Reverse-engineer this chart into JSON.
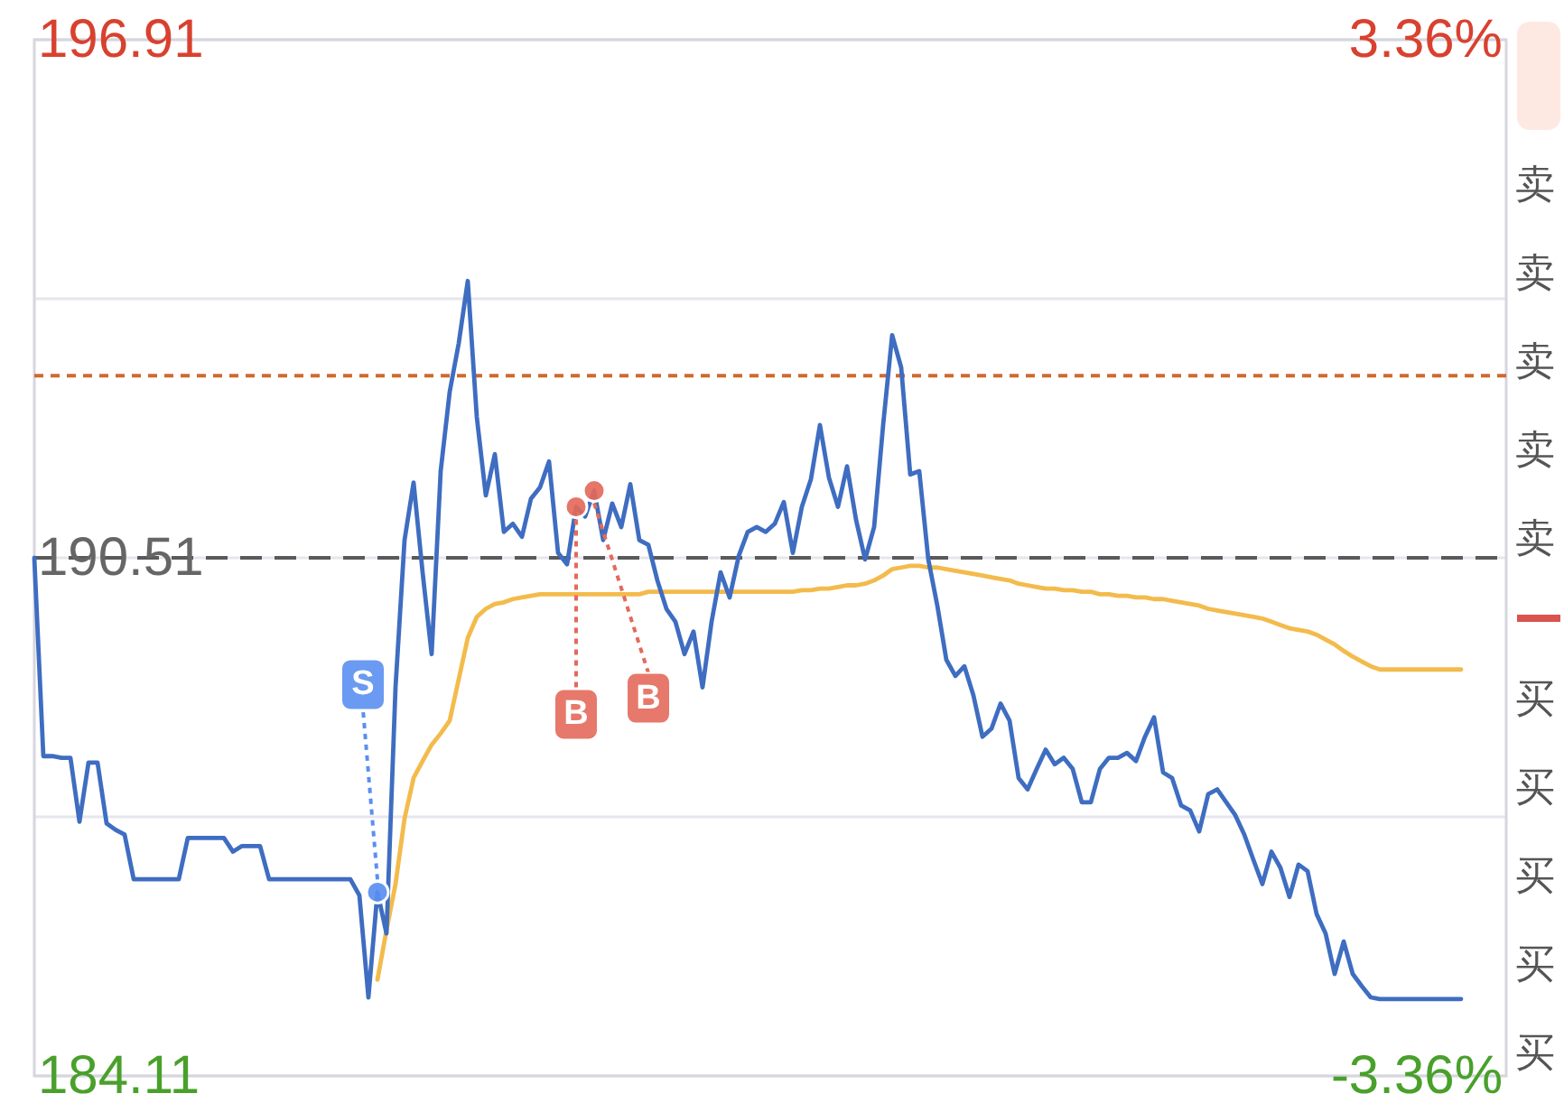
{
  "chart_data": {
    "type": "line",
    "categories": [
      null,
      null,
      null,
      null,
      null,
      null,
      null,
      null,
      null,
      null,
      null,
      null,
      null,
      null,
      null,
      null,
      null,
      null,
      null,
      null,
      null,
      null,
      null,
      null,
      null,
      null,
      null,
      null,
      null,
      null,
      null,
      null,
      null,
      null,
      null,
      null,
      null,
      null,
      null,
      null,
      null,
      null,
      null,
      null,
      null,
      null,
      null,
      null,
      null,
      null,
      null,
      null,
      null,
      null,
      null,
      null,
      null,
      null,
      null,
      null,
      null,
      null,
      null,
      null,
      null,
      null,
      null,
      null,
      null,
      null,
      null,
      null,
      null,
      null,
      null,
      null,
      null,
      null,
      null,
      null,
      null,
      null,
      null,
      null,
      null,
      null,
      null,
      null,
      null,
      null,
      null,
      null,
      null,
      null,
      null,
      null,
      null,
      null,
      null,
      null,
      null,
      null,
      null,
      null,
      null,
      null,
      null,
      null,
      null,
      null,
      null,
      null,
      null,
      null,
      null,
      null,
      null,
      null,
      null,
      null,
      null,
      null,
      null,
      null,
      null,
      null,
      null,
      null,
      null,
      null,
      null,
      null,
      null,
      null,
      null,
      null,
      null,
      null,
      null,
      null,
      null,
      null,
      null,
      null,
      null,
      null,
      null,
      null,
      null,
      null,
      null,
      null,
      null,
      null,
      null,
      null,
      null,
      null,
      null,
      null,
      null,
      null,
      null,
      null
    ],
    "series": [
      {
        "color": "#f3bb4c",
        "values": [
          null,
          null,
          null,
          null,
          null,
          null,
          null,
          null,
          null,
          null,
          null,
          null,
          null,
          null,
          null,
          null,
          null,
          null,
          null,
          null,
          null,
          null,
          null,
          null,
          null,
          null,
          null,
          null,
          null,
          null,
          null,
          null,
          null,
          null,
          null,
          null,
          null,
          null,
          185.3,
          185.91,
          186.48,
          187.29,
          187.79,
          188.0,
          188.2,
          188.34,
          188.5,
          189.01,
          189.52,
          189.78,
          189.88,
          189.94,
          189.96,
          190.0,
          190.02,
          190.04,
          190.06,
          190.06,
          190.06,
          190.06,
          190.06,
          190.06,
          190.06,
          190.06,
          190.06,
          190.06,
          190.06,
          190.06,
          190.09,
          190.09,
          190.09,
          190.09,
          190.09,
          190.09,
          190.09,
          190.09,
          190.09,
          190.09,
          190.09,
          190.09,
          190.09,
          190.09,
          190.09,
          190.09,
          190.09,
          190.11,
          190.11,
          190.13,
          190.13,
          190.15,
          190.17,
          190.17,
          190.19,
          190.23,
          190.29,
          190.37,
          190.39,
          190.41,
          190.41,
          190.39,
          190.39,
          190.37,
          190.35,
          190.33,
          190.31,
          190.29,
          190.27,
          190.25,
          190.23,
          190.19,
          190.17,
          190.15,
          190.13,
          190.13,
          190.11,
          190.11,
          190.09,
          190.09,
          190.06,
          190.06,
          190.04,
          190.04,
          190.02,
          190.02,
          190.0,
          190.0,
          189.98,
          189.96,
          189.94,
          189.92,
          189.88,
          189.86,
          189.84,
          189.82,
          189.8,
          189.78,
          189.76,
          189.72,
          189.68,
          189.64,
          189.62,
          189.6,
          189.56,
          189.5,
          189.44,
          189.36,
          189.29,
          189.23,
          189.17,
          189.13,
          189.13,
          189.13,
          189.13,
          189.13,
          189.13,
          189.13,
          189.13,
          189.13,
          189.13,
          null,
          null,
          null,
          null,
          null
        ]
      },
      {
        "color": "#3e6dc1",
        "values": [
          190.51,
          188.06,
          188.06,
          188.04,
          188.04,
          187.25,
          187.98,
          187.98,
          187.23,
          187.15,
          187.09,
          186.54,
          186.54,
          186.54,
          186.54,
          186.54,
          186.54,
          187.05,
          187.05,
          187.05,
          187.05,
          187.05,
          186.88,
          186.95,
          186.95,
          186.95,
          186.54,
          186.54,
          186.54,
          186.54,
          186.54,
          186.54,
          186.54,
          186.54,
          186.54,
          186.54,
          186.34,
          185.08,
          186.38,
          185.87,
          188.91,
          190.73,
          191.44,
          190.33,
          189.32,
          191.58,
          192.56,
          193.16,
          193.93,
          192.25,
          191.28,
          191.79,
          190.83,
          190.93,
          190.77,
          191.24,
          191.38,
          191.7,
          190.57,
          190.43,
          191.14,
          191.02,
          191.34,
          190.73,
          191.18,
          190.89,
          191.42,
          190.73,
          190.67,
          190.23,
          189.88,
          189.72,
          189.32,
          189.6,
          188.91,
          189.72,
          190.33,
          190.02,
          190.53,
          190.83,
          190.89,
          190.83,
          190.93,
          191.2,
          190.57,
          191.14,
          191.48,
          192.15,
          191.5,
          191.14,
          191.64,
          190.98,
          190.49,
          190.89,
          192.15,
          193.26,
          192.86,
          191.54,
          191.58,
          190.49,
          189.92,
          189.25,
          189.05,
          189.17,
          188.81,
          188.3,
          188.4,
          188.71,
          188.5,
          187.79,
          187.65,
          187.9,
          188.14,
          187.96,
          188.04,
          187.9,
          187.49,
          187.49,
          187.9,
          188.04,
          188.04,
          188.1,
          188.0,
          188.3,
          188.54,
          187.86,
          187.79,
          187.45,
          187.39,
          187.13,
          187.59,
          187.65,
          187.49,
          187.33,
          187.09,
          186.78,
          186.48,
          186.88,
          186.68,
          186.32,
          186.72,
          186.64,
          186.11,
          185.87,
          185.37,
          185.77,
          185.37,
          185.22,
          185.08,
          185.06,
          185.06,
          185.06,
          185.06,
          185.06,
          185.06,
          185.06,
          185.06,
          185.06,
          185.06,
          null,
          null,
          null,
          null,
          null
        ]
      },
      {
        "type": "scatter",
        "name": "S",
        "color": "#5a8ff0",
        "marker": "circle",
        "values": [
          null,
          null,
          null,
          null,
          null,
          null,
          null,
          null,
          null,
          null,
          null,
          null,
          null,
          null,
          null,
          null,
          null,
          null,
          null,
          null,
          null,
          null,
          null,
          null,
          null,
          null,
          null,
          null,
          null,
          null,
          null,
          null,
          null,
          null,
          null,
          null,
          null,
          null,
          186.38,
          null,
          null,
          null,
          null,
          null,
          null,
          null,
          null,
          null,
          null,
          null,
          null,
          null,
          null,
          null,
          null,
          null,
          null,
          null,
          null,
          null,
          null,
          null,
          null,
          null,
          null,
          null,
          null,
          null,
          null,
          null,
          null,
          null,
          null,
          null,
          null,
          null,
          null,
          null,
          null,
          null,
          null,
          null,
          null,
          null,
          null,
          null,
          null,
          null,
          null,
          null,
          null,
          null,
          null,
          null,
          null,
          null,
          null,
          null,
          null,
          null,
          null,
          null,
          null,
          null,
          null,
          null,
          null,
          null,
          null,
          null,
          null,
          null,
          null,
          null,
          null,
          null,
          null,
          null,
          null,
          null,
          null,
          null,
          null,
          null,
          null,
          null,
          null,
          null,
          null,
          null,
          null,
          null,
          null,
          null,
          null,
          null,
          null,
          null,
          null,
          null,
          null,
          null,
          null,
          null,
          null,
          null,
          null,
          null,
          null,
          null,
          null,
          null,
          null,
          null,
          null,
          null,
          null,
          null,
          null,
          null,
          null,
          null,
          null,
          null
        ]
      },
      {
        "type": "scatter",
        "name": "B",
        "color": "#e36a5b",
        "marker": "circle",
        "values": [
          null,
          null,
          null,
          null,
          null,
          null,
          null,
          null,
          null,
          null,
          null,
          null,
          null,
          null,
          null,
          null,
          null,
          null,
          null,
          null,
          null,
          null,
          null,
          null,
          null,
          null,
          null,
          null,
          null,
          null,
          null,
          null,
          null,
          null,
          null,
          null,
          null,
          null,
          null,
          null,
          null,
          null,
          null,
          null,
          null,
          null,
          null,
          null,
          null,
          null,
          null,
          null,
          null,
          null,
          null,
          null,
          null,
          null,
          null,
          null,
          191.14,
          null,
          191.34,
          null,
          null,
          null,
          null,
          null,
          null,
          null,
          null,
          null,
          null,
          null,
          null,
          null,
          null,
          null,
          null,
          null,
          null,
          null,
          null,
          null,
          null,
          null,
          null,
          null,
          null,
          null,
          null,
          null,
          null,
          null,
          null,
          null,
          null,
          null,
          null,
          null,
          null,
          null,
          null,
          null,
          null,
          null,
          null,
          null,
          null,
          null,
          null,
          null,
          null,
          null,
          null,
          null,
          null,
          null,
          null,
          null,
          null,
          null,
          null,
          null,
          null,
          null,
          null,
          null,
          null,
          null,
          null,
          null,
          null,
          null,
          null,
          null,
          null,
          null,
          null,
          null,
          null,
          null,
          null,
          null,
          null,
          null,
          null,
          null,
          null,
          null,
          null,
          null,
          null,
          null,
          null,
          null,
          null,
          null,
          null,
          null,
          null,
          null,
          null,
          null
        ]
      }
    ],
    "ylim": [
      184.11,
      196.91
    ],
    "yticks": [
      184.11,
      {
        "value": 187.31,
        "label": null
      },
      190.51,
      {
        "value": 193.71,
        "label": null
      },
      196.91
    ],
    "y2lim": [
      -3.36,
      3.36
    ],
    "y2ticks": [
      {
        "value": -3.36,
        "label": "-3.36%"
      },
      {
        "value": 3.36,
        "label": "3.36%"
      }
    ],
    "ref_lines": [
      {
        "axis": "y",
        "value": 190.51,
        "color": "#5a5a5a",
        "line_style": "dashed"
      },
      {
        "axis": "y",
        "value": 192.76,
        "color": "#d0692f",
        "line_style": "dotted"
      }
    ],
    "grid": "y",
    "tick_labels": "y",
    "annotations": [
      "卖",
      "卖",
      "卖",
      "卖",
      "卖",
      "买",
      "买",
      "买",
      "买",
      "买"
    ]
  }
}
